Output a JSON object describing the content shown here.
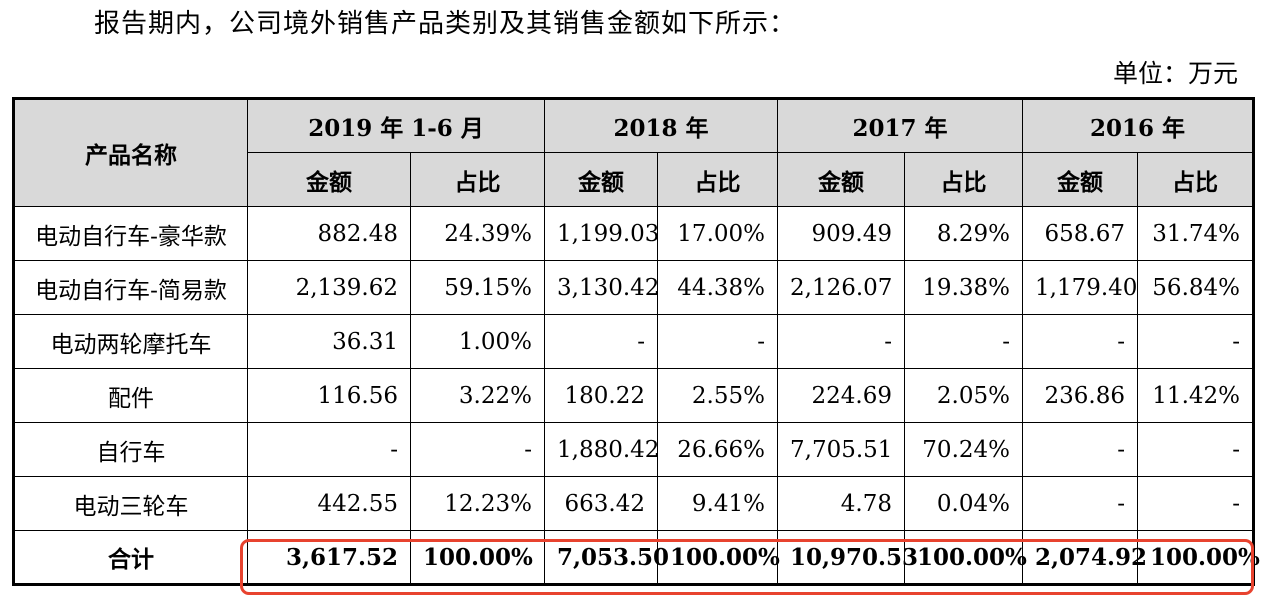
{
  "intro": "报告期内，公司境外销售产品类别及其销售金额如下所示：",
  "unit": "单位：万元",
  "table": {
    "product_header": "产品名称",
    "years": [
      "2019 年 1-6 月",
      "2018 年",
      "2017 年",
      "2016 年"
    ],
    "sub_headers": [
      "金额",
      "占比",
      "金额",
      "占比",
      "金额",
      "占比",
      "金额",
      "占比"
    ],
    "rows": [
      {
        "name": "电动自行车-豪华款",
        "cells": [
          "882.48",
          "24.39%",
          "1,199.03",
          "17.00%",
          "909.49",
          "8.29%",
          "658.67",
          "31.74%"
        ]
      },
      {
        "name": "电动自行车-简易款",
        "cells": [
          "2,139.62",
          "59.15%",
          "3,130.42",
          "44.38%",
          "2,126.07",
          "19.38%",
          "1,179.40",
          "56.84%"
        ]
      },
      {
        "name": "电动两轮摩托车",
        "cells": [
          "36.31",
          "1.00%",
          "-",
          "-",
          "-",
          "-",
          "-",
          "-"
        ]
      },
      {
        "name": "配件",
        "cells": [
          "116.56",
          "3.22%",
          "180.22",
          "2.55%",
          "224.69",
          "2.05%",
          "236.86",
          "11.42%"
        ]
      },
      {
        "name": "自行车",
        "cells": [
          "-",
          "-",
          "1,880.42",
          "26.66%",
          "7,705.51",
          "70.24%",
          "-",
          "-"
        ]
      },
      {
        "name": "电动三轮车",
        "cells": [
          "442.55",
          "12.23%",
          "663.42",
          "9.41%",
          "4.78",
          "0.04%",
          "-",
          "-"
        ]
      }
    ],
    "total": {
      "name": "合计",
      "cells": [
        "3,617.52",
        "100.00%",
        "7,053.50",
        "100.00%",
        "10,970.53",
        "100.00%",
        "2,074.92",
        "100.00%"
      ]
    }
  },
  "highlight_color": "#e8432f"
}
